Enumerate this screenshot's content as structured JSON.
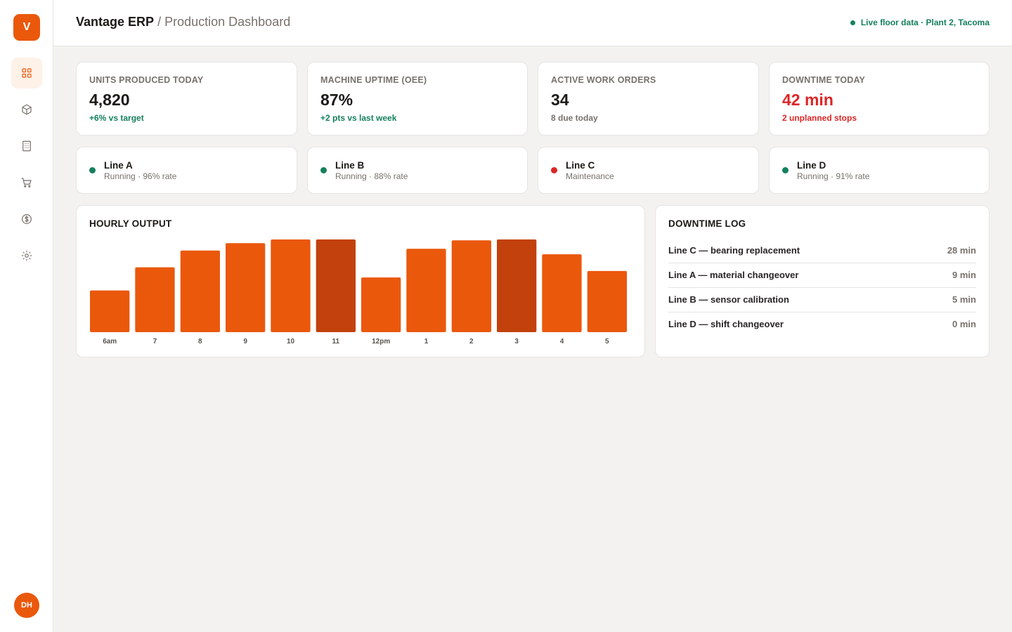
{
  "sidebar": {
    "logo_letter": "V",
    "nav": [
      {
        "icon": "grid-icon",
        "active": true
      },
      {
        "icon": "box-icon",
        "active": false
      },
      {
        "icon": "building-icon",
        "active": false
      },
      {
        "icon": "cart-icon",
        "active": false
      },
      {
        "icon": "dollar-icon",
        "active": false
      },
      {
        "icon": "gear-icon",
        "active": false
      }
    ],
    "user_initials": "DH"
  },
  "header": {
    "brand": "Vantage ERP",
    "separator": "/",
    "page": "Production Dashboard",
    "live_status": "Live floor data · Plant 2, Tacoma"
  },
  "kpis": [
    {
      "label": "Units Produced Today",
      "value": "4,820",
      "note": "+6% vs target",
      "tone": "green"
    },
    {
      "label": "Machine Uptime (OEE)",
      "value": "87%",
      "note": "+2 pts vs last week",
      "tone": "green"
    },
    {
      "label": "Active Work Orders",
      "value": "34",
      "note": "8 due today",
      "tone": "neutral"
    },
    {
      "label": "Downtime Today",
      "value": "42 min",
      "note": "2 unplanned stops",
      "tone": "red"
    }
  ],
  "lines": [
    {
      "name": "Line A",
      "status": "Running · 96% rate",
      "color": "#15805d"
    },
    {
      "name": "Line B",
      "status": "Running · 88% rate",
      "color": "#15805d"
    },
    {
      "name": "Line C",
      "status": "Maintenance",
      "color": "#dc2626"
    },
    {
      "name": "Line D",
      "status": "Running · 91% rate",
      "color": "#15805d"
    }
  ],
  "hourly_output": {
    "title": "HOURLY OUTPUT"
  },
  "chart_data": {
    "type": "bar",
    "title": "HOURLY OUTPUT",
    "categories": [
      "6am",
      "7",
      "8",
      "9",
      "10",
      "11",
      "12pm",
      "1",
      "2",
      "3",
      "4",
      "5"
    ],
    "values": [
      45,
      70,
      88,
      96,
      100,
      100,
      59,
      90,
      99,
      100,
      84,
      66
    ],
    "highlighted": [
      "11",
      "3"
    ],
    "colors": {
      "bar": "#ea580c",
      "highlight": "#c2410c",
      "tick": "#57534e"
    },
    "ylim": [
      0,
      100
    ],
    "grid": false,
    "legend": "none"
  },
  "downtime_log": {
    "title": "DOWNTIME LOG",
    "entries": [
      {
        "desc": "Line C — bearing replacement",
        "duration": "28 min"
      },
      {
        "desc": "Line A — material changeover",
        "duration": "9 min"
      },
      {
        "desc": "Line B — sensor calibration",
        "duration": "5 min"
      },
      {
        "desc": "Line D — shift changeover",
        "duration": "0 min"
      }
    ]
  },
  "colors": {
    "accent": "#ea580c",
    "accent_dark": "#c2410c",
    "success": "#15805d",
    "danger": "#dc2626"
  }
}
